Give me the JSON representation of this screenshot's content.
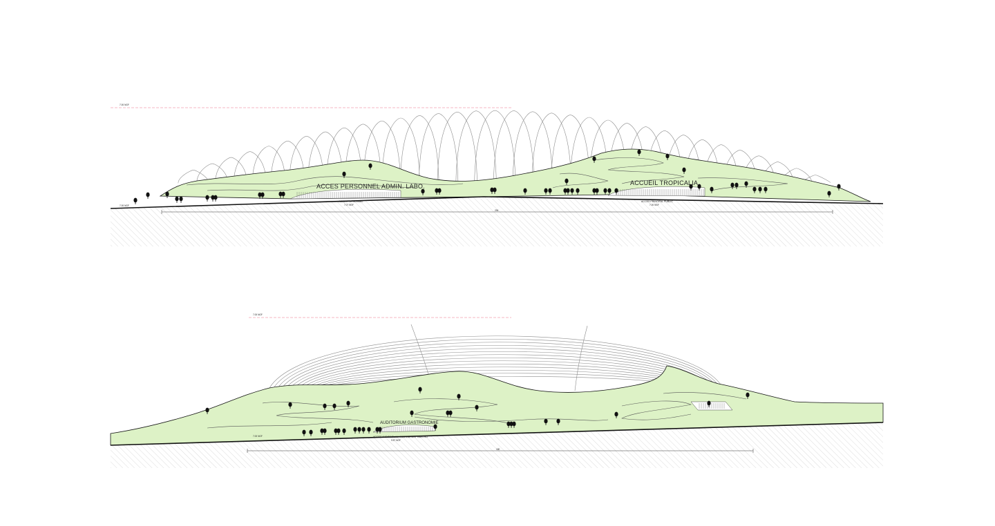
{
  "elevation_top": {
    "top_level_label": "7.00 NGF",
    "ground_level_label": "7.00 NGF",
    "label_staff_access": "ACCES PERSONNEL ADMIN. LABO.",
    "label_reception": "ACCUEIL TROPICALIA",
    "entrance_staff": "ACCES PERSONNEL",
    "entrance_staff_level": "7.07 NGF",
    "entrance_public": "ACCES PRINCIPAL PUBLIC",
    "entrance_public_level": "7.00 NGF",
    "dimension_label": "294"
  },
  "elevation_bottom": {
    "top_level_label": "7.00 NGF",
    "ground_level_label": "7.00 NGF",
    "label_auditorium": "AUDITORIUM GASTRONOMIE",
    "entrance_auditorium": "ACCES AUDITORIUM / RESTAURANT GASTRO",
    "entrance_auditorium_level": "9.57 NGF",
    "dimension_label": "180"
  },
  "colors": {
    "landscape_green": "#ddf2c6",
    "ground_hatch": "#bdbdbd",
    "datum_line": "#f4a0b0",
    "structure_line": "#8a8a8a",
    "ink": "#111111"
  }
}
